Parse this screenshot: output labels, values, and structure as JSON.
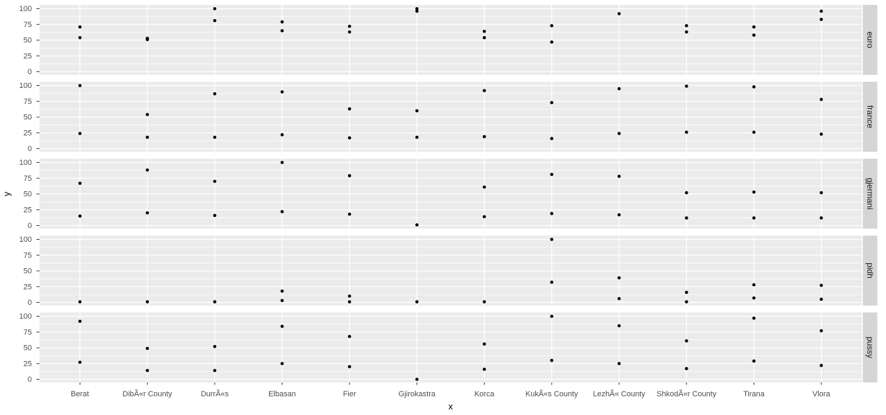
{
  "figure": {
    "x_axis_title": "x",
    "y_axis_title": "y",
    "colors": {
      "panel_background": "#EBEBEB",
      "strip_background": "#D5D5D5",
      "gridline": "#FFFFFF",
      "point": "#000000",
      "tick_mark": "#333333",
      "tick_label": "#4D4D4D",
      "page_background": "#FFFFFF"
    }
  },
  "chart_data": {
    "type": "scatter",
    "title": "",
    "xlabel": "x",
    "ylabel": "y",
    "ylim": [
      0,
      100
    ],
    "y_tick_values": [
      0,
      25,
      50,
      75,
      100
    ],
    "y_tick_labels": [
      "100",
      "75",
      "50",
      "25",
      "0"
    ],
    "y_minor_gridlines": [
      12.5,
      37.5,
      62.5,
      87.5
    ],
    "grid": "white major and minor horizontal lines plus white vertical category lines on grey panels",
    "legend": "none",
    "faceting": {
      "variable_values": [
        "euro",
        "france",
        "gjermani",
        "pidh",
        "pussy"
      ],
      "strip_position": "right",
      "layout": "rows"
    },
    "categories": [
      "Berat",
      "DibÃ«r County",
      "DurrÃ«s",
      "Elbasan",
      "Fier",
      "Gjirokastra",
      "Korca",
      "KukÃ«s County",
      "LezhÃ« County",
      "ShkodÃ«r County",
      "Tirana",
      "Vlora"
    ],
    "facets": [
      {
        "name": "euro",
        "values": [
          [
            71,
            54
          ],
          [
            53,
            51
          ],
          [
            100,
            81
          ],
          [
            79,
            65
          ],
          [
            72,
            63
          ],
          [
            100,
            96
          ],
          [
            64,
            54
          ],
          [
            73,
            47
          ],
          [
            92
          ],
          [
            73,
            63
          ],
          [
            71,
            58
          ],
          [
            96,
            83
          ]
        ]
      },
      {
        "name": "france",
        "values": [
          [
            100,
            24
          ],
          [
            54,
            18
          ],
          [
            87,
            18
          ],
          [
            90,
            22
          ],
          [
            63,
            17
          ],
          [
            60,
            18
          ],
          [
            92,
            19
          ],
          [
            73,
            16
          ],
          [
            95,
            24
          ],
          [
            99,
            26
          ],
          [
            98,
            26
          ],
          [
            78,
            23
          ]
        ]
      },
      {
        "name": "gjermani",
        "values": [
          [
            67,
            15
          ],
          [
            88,
            20
          ],
          [
            70,
            16
          ],
          [
            100,
            22
          ],
          [
            79,
            18
          ],
          [
            1
          ],
          [
            61,
            14
          ],
          [
            81,
            19
          ],
          [
            78,
            17
          ],
          [
            52,
            12
          ],
          [
            53,
            12
          ],
          [
            52,
            12
          ]
        ]
      },
      {
        "name": "pidh",
        "values": [
          [
            1
          ],
          [
            1
          ],
          [
            1
          ],
          [
            18,
            3
          ],
          [
            10,
            1
          ],
          [
            1
          ],
          [
            1
          ],
          [
            100,
            32
          ],
          [
            39,
            6
          ],
          [
            16,
            1
          ],
          [
            28,
            7
          ],
          [
            27,
            5
          ]
        ]
      },
      {
        "name": "pussy",
        "values": [
          [
            92,
            27
          ],
          [
            49,
            14
          ],
          [
            52,
            14
          ],
          [
            84,
            25
          ],
          [
            68,
            20
          ],
          [
            0
          ],
          [
            56,
            16
          ],
          [
            100,
            30
          ],
          [
            85,
            25
          ],
          [
            61,
            17
          ],
          [
            97,
            29
          ],
          [
            77,
            22
          ]
        ]
      }
    ]
  }
}
